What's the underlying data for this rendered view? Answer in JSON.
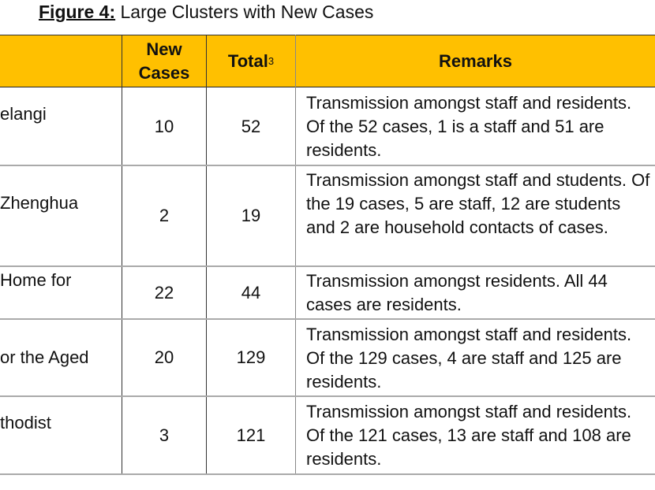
{
  "title": {
    "label": "Figure 4:",
    "text": " Large Clusters with New Cases"
  },
  "table": {
    "headers": {
      "new_cases_line1": "New",
      "new_cases_line2": "Cases",
      "total": "Total",
      "total_footnote": "3",
      "remarks": "Remarks"
    },
    "rows": [
      {
        "name": "elangi",
        "new": "10",
        "total": "52",
        "remarks": "Transmission amongst staff and residents. Of the 52 cases, 1 is a staff and 51 are residents."
      },
      {
        "name": "Zhenghua",
        "new": "2",
        "total": "19",
        "remarks": "Transmission amongst staff and students. Of the 19 cases, 5 are staff, 12 are students and 2 are household contacts of cases."
      },
      {
        "name": "Home for",
        "new": "22",
        "total": "44",
        "remarks": "Transmission amongst residents. All 44 cases are residents."
      },
      {
        "name": "or the Aged",
        "new": "20",
        "total": "129",
        "remarks": "Transmission amongst staff and residents. Of the 129 cases, 4 are staff and 125 are residents."
      },
      {
        "name": "thodist",
        "new": "3",
        "total": "121",
        "remarks": "Transmission amongst staff and residents. Of the 121 cases, 13 are staff and 108 are residents."
      }
    ]
  },
  "colors": {
    "header_bg": "#FFC000"
  }
}
